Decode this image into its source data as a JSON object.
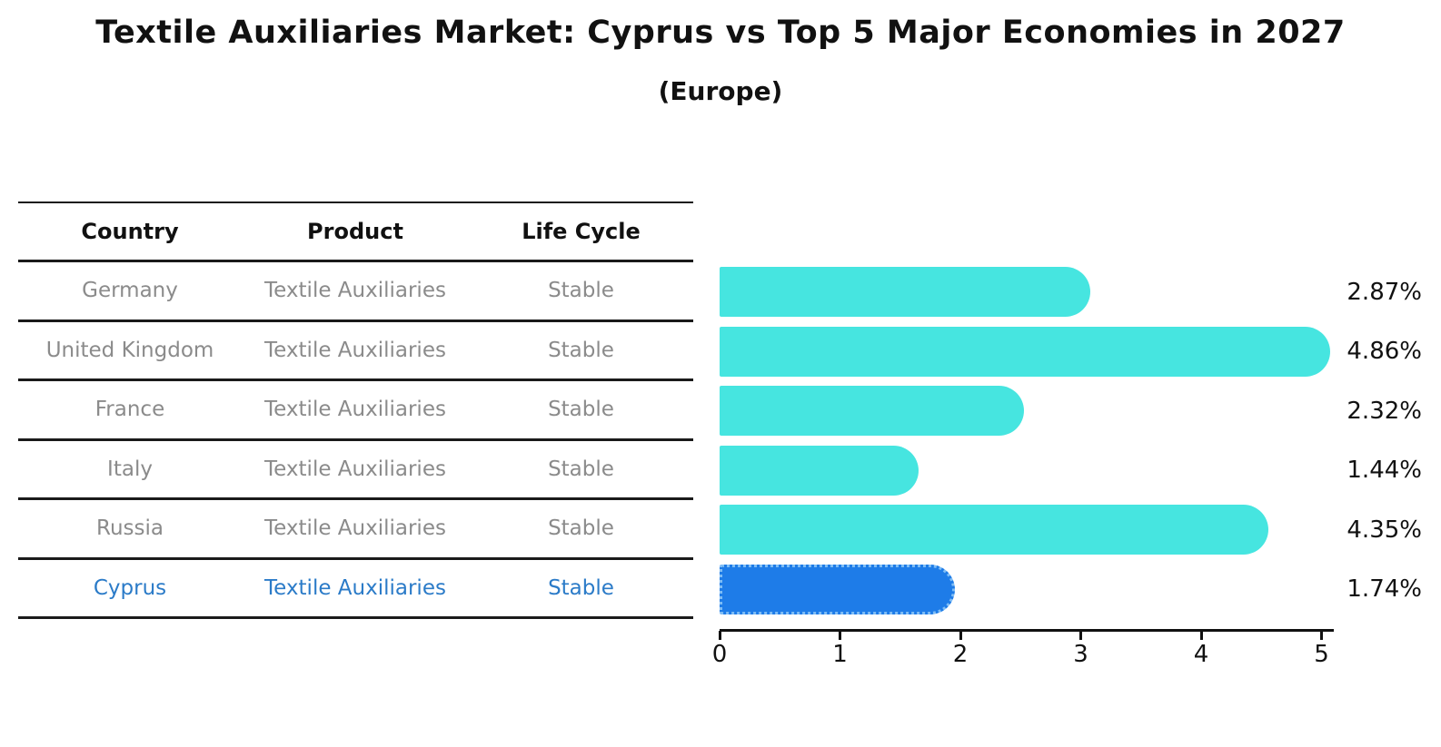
{
  "title": "Textile Auxiliaries Market: Cyprus vs Top 5 Major Economies in 2027",
  "subtitle": "(Europe)",
  "table": {
    "headers": [
      "Country",
      "Product",
      "Life Cycle"
    ],
    "rows": [
      {
        "country": "Germany",
        "product": "Textile Auxiliaries",
        "life_cycle": "Stable",
        "highlight": false
      },
      {
        "country": "United Kingdom",
        "product": "Textile Auxiliaries",
        "life_cycle": "Stable",
        "highlight": false
      },
      {
        "country": "France",
        "product": "Textile Auxiliaries",
        "life_cycle": "Stable",
        "highlight": false
      },
      {
        "country": "Italy",
        "product": "Textile Auxiliaries",
        "life_cycle": "Stable",
        "highlight": false
      },
      {
        "country": "Russia",
        "product": "Textile Auxiliaries",
        "life_cycle": "Stable",
        "highlight": false
      },
      {
        "country": "Cyprus",
        "product": "Textile Auxiliaries",
        "life_cycle": "Stable",
        "highlight": true
      }
    ]
  },
  "chart_data": {
    "type": "bar",
    "orientation": "horizontal",
    "title": "Textile Auxiliaries Market: Cyprus vs Top 5 Major Economies in 2027",
    "subtitle": "(Europe)",
    "categories": [
      "Germany",
      "United Kingdom",
      "France",
      "Italy",
      "Russia",
      "Cyprus"
    ],
    "values": [
      2.87,
      4.86,
      2.32,
      1.44,
      4.35,
      1.74
    ],
    "value_labels": [
      "2.87%",
      "4.86%",
      "2.32%",
      "1.44%",
      "4.35%",
      "1.74%"
    ],
    "xlim": [
      0,
      5
    ],
    "x_ticks": [
      "0",
      "1",
      "2",
      "3",
      "4",
      "5"
    ],
    "grid": false,
    "legend": "none",
    "bar_color": "#46e5e0",
    "highlight_index": 5,
    "highlight_bar_color": "#1e7ce8",
    "highlight_border_color": "#7fbdf5",
    "highlight_border_style": "dotted",
    "highlight_text_color": "#2b7bc8",
    "text_color": "#8b8b8b",
    "axis_color": "#111111"
  }
}
